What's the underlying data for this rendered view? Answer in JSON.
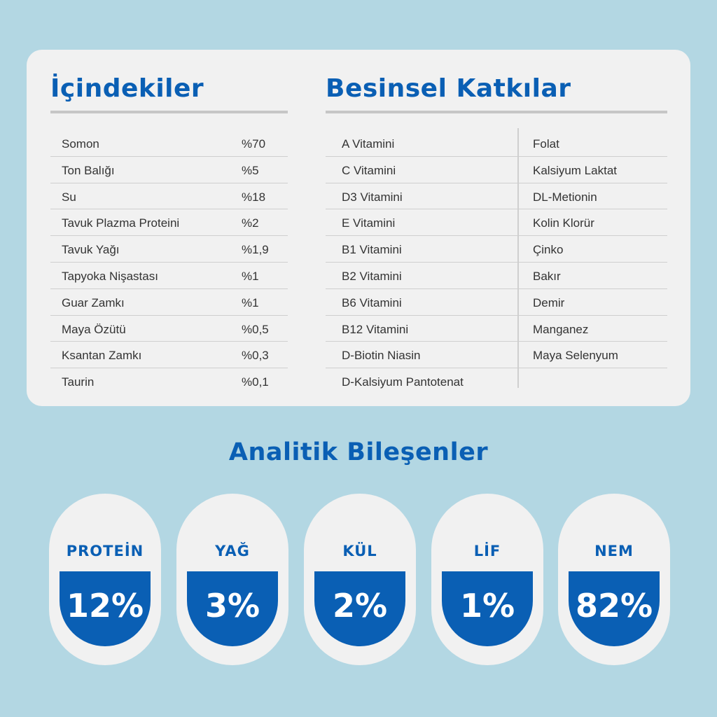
{
  "ingredients": {
    "title": "İçindekiler",
    "rows": [
      {
        "name": "Somon",
        "pct": "%70"
      },
      {
        "name": "Ton Balığı",
        "pct": "%5"
      },
      {
        "name": "Su",
        "pct": "%18"
      },
      {
        "name": "Tavuk Plazma Proteini",
        "pct": "%2"
      },
      {
        "name": "Tavuk Yağı",
        "pct": "%1,9"
      },
      {
        "name": "Tapyoka Nişastası",
        "pct": "%1"
      },
      {
        "name": "Guar Zamkı",
        "pct": "%1"
      },
      {
        "name": "Maya Özütü",
        "pct": "%0,5"
      },
      {
        "name": "Ksantan Zamkı",
        "pct": "%0,3"
      },
      {
        "name": "Taurin",
        "pct": "%0,1"
      }
    ]
  },
  "additives": {
    "title": "Besinsel Katkılar",
    "col1": [
      "A Vitamini",
      "C Vitamini",
      "D3 Vitamini",
      "E Vitamini",
      "B1 Vitamini",
      "B2 Vitamini",
      "B6 Vitamini",
      "B12 Vitamini",
      "D-Biotin Niasin",
      "D-Kalsiyum Pantotenat"
    ],
    "col2": [
      "Folat",
      "Kalsiyum Laktat",
      "DL-Metionin",
      "Kolin Klorür",
      "Çinko",
      "Bakır",
      "Demir",
      "Manganez",
      "Maya Selenyum"
    ]
  },
  "analytics": {
    "title": "Analitik Bileşenler",
    "items": [
      {
        "label": "PROTEİN",
        "value": "12%"
      },
      {
        "label": "YAĞ",
        "value": "3%"
      },
      {
        "label": "KÜL",
        "value": "2%"
      },
      {
        "label": "LİF",
        "value": "1%"
      },
      {
        "label": "NEM",
        "value": "82%"
      }
    ]
  },
  "colors": {
    "background": "#b3d7e3",
    "card": "#f1f1f1",
    "accent": "#0a5fb4"
  }
}
